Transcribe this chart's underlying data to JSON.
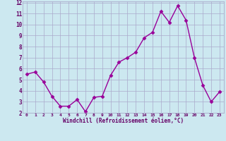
{
  "x": [
    0,
    1,
    2,
    3,
    4,
    5,
    6,
    7,
    8,
    9,
    10,
    11,
    12,
    13,
    14,
    15,
    16,
    17,
    18,
    19,
    20,
    21,
    22,
    23
  ],
  "y": [
    5.5,
    5.7,
    4.8,
    3.5,
    2.6,
    2.6,
    3.2,
    2.1,
    3.4,
    3.5,
    5.4,
    6.6,
    7.0,
    7.5,
    8.8,
    9.3,
    11.2,
    10.2,
    11.7,
    10.4,
    7.0,
    4.5,
    3.0,
    3.9
  ],
  "xlabel": "Windchill (Refroidissement éolien,°C)",
  "ylim": [
    2,
    12
  ],
  "xlim": [
    -0.5,
    23.5
  ],
  "yticks": [
    2,
    3,
    4,
    5,
    6,
    7,
    8,
    9,
    10,
    11,
    12
  ],
  "xticks": [
    0,
    1,
    2,
    3,
    4,
    5,
    6,
    7,
    8,
    9,
    10,
    11,
    12,
    13,
    14,
    15,
    16,
    17,
    18,
    19,
    20,
    21,
    22,
    23
  ],
  "line_color": "#990099",
  "marker": "D",
  "bg_color": "#cce8f0",
  "grid_color": "#aaaacc",
  "label_color": "#660066",
  "tick_color": "#660066",
  "font_family": "monospace",
  "markersize": 2.5,
  "linewidth": 1.0
}
